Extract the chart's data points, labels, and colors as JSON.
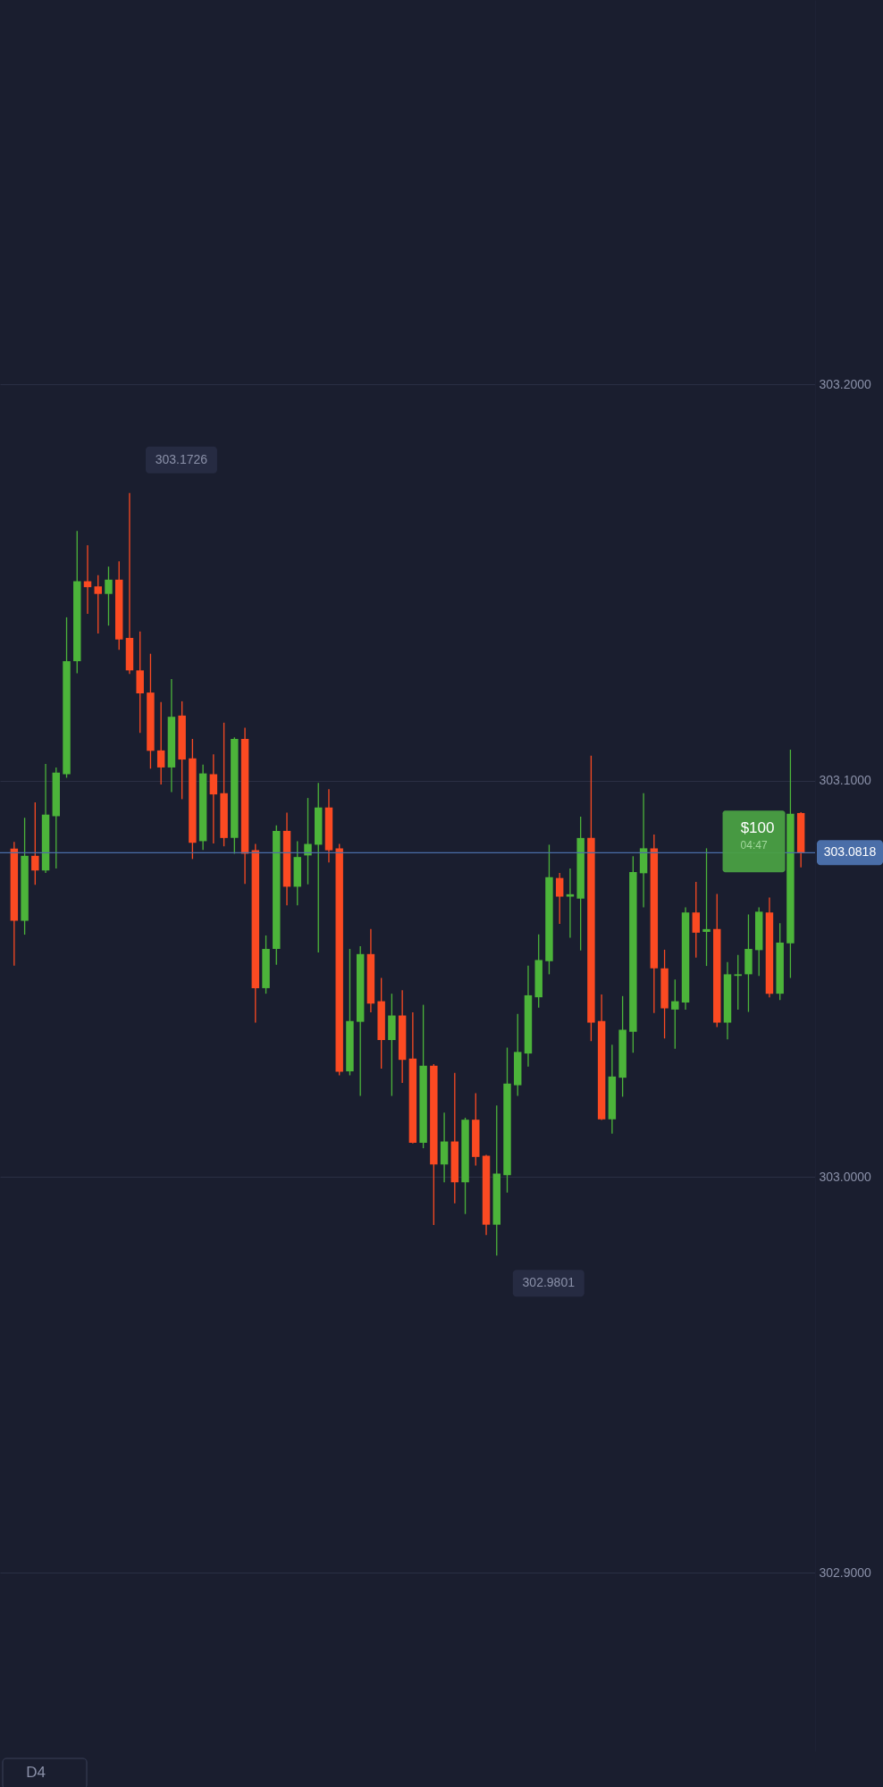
{
  "chart_data": {
    "type": "candlestick",
    "categories": [
      null,
      null,
      null,
      null,
      null,
      null,
      null,
      null,
      null,
      null,
      null,
      null,
      null,
      null,
      null,
      null,
      null,
      null,
      null,
      null,
      null,
      null,
      null,
      null,
      null,
      null,
      null,
      null,
      null,
      null,
      null,
      null,
      null,
      null,
      null,
      null,
      null,
      null,
      null,
      null,
      null,
      null,
      null,
      null,
      null,
      null,
      null,
      null,
      null,
      null,
      null,
      null,
      null,
      null,
      null,
      null,
      null,
      null,
      null,
      null,
      null,
      null,
      null,
      null,
      null,
      null,
      null,
      null,
      null,
      null,
      null,
      null,
      null,
      null,
      null,
      null
    ],
    "ohlc": [
      [
        303.0828,
        303.0845,
        303.0533,
        303.0646
      ],
      [
        303.0646,
        303.0906,
        303.0611,
        303.081
      ],
      [
        303.081,
        303.0945,
        303.0737,
        303.0773
      ],
      [
        303.0773,
        303.1042,
        303.0767,
        303.0914
      ],
      [
        303.091,
        303.1033,
        303.0778,
        303.102
      ],
      [
        303.1016,
        303.1412,
        303.1007,
        303.1301
      ],
      [
        303.1301,
        303.163,
        303.1271,
        303.1503
      ],
      [
        303.1503,
        303.1594,
        303.1421,
        303.1488
      ],
      [
        303.149,
        303.1518,
        303.1371,
        303.1471
      ],
      [
        303.1471,
        303.154,
        303.1391,
        303.1507
      ],
      [
        303.1507,
        303.1553,
        303.133,
        303.1356
      ],
      [
        303.136,
        303.1726,
        303.1269,
        303.1278
      ],
      [
        303.1278,
        303.1376,
        303.112,
        303.122
      ],
      [
        303.1222,
        303.132,
        303.103,
        303.1075
      ],
      [
        303.1076,
        303.1198,
        303.099,
        303.1033
      ],
      [
        303.1033,
        303.1256,
        303.0971,
        303.1161
      ],
      [
        303.1164,
        303.12,
        303.0953,
        303.1053
      ],
      [
        303.1056,
        303.1105,
        303.0802,
        303.0843
      ],
      [
        303.0847,
        303.104,
        303.0825,
        303.1018
      ],
      [
        303.1016,
        303.1066,
        303.0841,
        303.0965
      ],
      [
        303.0968,
        303.1146,
        303.0834,
        303.0855
      ],
      [
        303.0855,
        303.1109,
        303.0815,
        303.1105
      ],
      [
        303.1105,
        303.1133,
        303.0739,
        303.0815
      ],
      [
        303.0824,
        303.084,
        303.0389,
        303.0476
      ],
      [
        303.0476,
        303.0609,
        303.0462,
        303.0575
      ],
      [
        303.0575,
        303.0887,
        303.0535,
        303.0873
      ],
      [
        303.0873,
        303.0919,
        303.0685,
        303.0732
      ],
      [
        303.0732,
        303.0847,
        303.0685,
        303.0807
      ],
      [
        303.0811,
        303.0956,
        303.0738,
        303.084
      ],
      [
        303.0838,
        303.0994,
        303.0566,
        303.0932
      ],
      [
        303.0932,
        303.0978,
        303.0793,
        303.0824
      ],
      [
        303.0829,
        303.084,
        303.0256,
        303.0265
      ],
      [
        303.0266,
        303.0575,
        303.0256,
        303.0393
      ],
      [
        303.0391,
        303.0582,
        303.0204,
        303.0562
      ],
      [
        303.0562,
        303.0625,
        303.0415,
        303.0437
      ],
      [
        303.0443,
        303.0502,
        303.0273,
        303.0345
      ],
      [
        303.0345,
        303.0462,
        303.0204,
        303.0407
      ],
      [
        303.0407,
        303.0471,
        303.0237,
        303.0295
      ],
      [
        303.0298,
        303.0415,
        303.0084,
        303.0086
      ],
      [
        303.0086,
        303.0434,
        303.0072,
        303.028
      ],
      [
        303.028,
        303.0284,
        302.9878,
        303.0031
      ],
      [
        303.0031,
        303.0162,
        302.9986,
        303.0089
      ],
      [
        303.0089,
        303.0262,
        302.9933,
        302.9986
      ],
      [
        302.9986,
        303.0149,
        302.9906,
        303.0144
      ],
      [
        303.0144,
        303.0211,
        303.0028,
        303.005
      ],
      [
        303.0053,
        303.0055,
        302.9853,
        302.9879
      ],
      [
        302.9879,
        303.018,
        302.9801,
        303.0008
      ],
      [
        303.0004,
        303.0326,
        302.996,
        303.0235
      ],
      [
        303.0231,
        303.0411,
        303.0204,
        303.0315
      ],
      [
        303.0311,
        303.0533,
        303.0278,
        303.0458
      ],
      [
        303.0453,
        303.0612,
        303.0427,
        303.0547
      ],
      [
        303.0544,
        303.0838,
        303.0511,
        303.0756
      ],
      [
        303.0754,
        303.0767,
        303.0638,
        303.0707
      ],
      [
        303.0707,
        303.0778,
        303.0603,
        303.0713
      ],
      [
        303.0702,
        303.0909,
        303.0571,
        303.0855
      ],
      [
        303.0855,
        303.1063,
        303.0342,
        303.0389
      ],
      [
        303.0393,
        303.046,
        303.0143,
        303.0145
      ],
      [
        303.0145,
        303.0333,
        303.0109,
        303.0253
      ],
      [
        303.025,
        303.0456,
        303.0202,
        303.0371
      ],
      [
        303.0366,
        303.0809,
        303.0313,
        303.0769
      ],
      [
        303.0766,
        303.0968,
        303.068,
        303.0829
      ],
      [
        303.0829,
        303.0864,
        303.0413,
        303.0526
      ],
      [
        303.0526,
        303.0573,
        303.0349,
        303.0425
      ],
      [
        303.0422,
        303.0498,
        303.0323,
        303.0443
      ],
      [
        303.044,
        303.068,
        303.0422,
        303.0667
      ],
      [
        303.0667,
        303.0744,
        303.0553,
        303.0616
      ],
      [
        303.0618,
        303.0829,
        303.0532,
        303.0625
      ],
      [
        303.0625,
        303.0714,
        303.0378,
        303.0389
      ],
      [
        303.0389,
        303.0542,
        303.0347,
        303.0511
      ],
      [
        303.0507,
        303.056,
        303.0422,
        303.0511
      ],
      [
        303.0511,
        303.0662,
        303.0416,
        303.0575
      ],
      [
        303.0572,
        303.068,
        303.0507,
        303.0669
      ],
      [
        303.0667,
        303.0705,
        303.0453,
        303.0462
      ],
      [
        303.0462,
        303.064,
        303.0446,
        303.0591
      ],
      [
        303.0589,
        303.1078,
        303.0502,
        303.0916
      ],
      [
        303.0918,
        303.092,
        303.0781,
        303.0818
      ]
    ],
    "colors": [
      "#fb4a22",
      "#4cb43a",
      "#fb4a22",
      "#4cb43a",
      "#4cb43a",
      "#4cb43a",
      "#4cb43a",
      "#fb4a22",
      "#fb4a22",
      "#4cb43a",
      "#fb4a22",
      "#fb4a22",
      "#fb4a22",
      "#fb4a22",
      "#fb4a22",
      "#4cb43a",
      "#fb4a22",
      "#fb4a22",
      "#4cb43a",
      "#fb4a22",
      "#fb4a22",
      "#4cb43a",
      "#fb4a22",
      "#fb4a22",
      "#4cb43a",
      "#4cb43a",
      "#fb4a22",
      "#4cb43a",
      "#4cb43a",
      "#4cb43a",
      "#fb4a22",
      "#fb4a22",
      "#4cb43a",
      "#4cb43a",
      "#fb4a22",
      "#fb4a22",
      "#4cb43a",
      "#fb4a22",
      "#fb4a22",
      "#4cb43a",
      "#fb4a22",
      "#4cb43a",
      "#fb4a22",
      "#4cb43a",
      "#fb4a22",
      "#fb4a22",
      "#4cb43a",
      "#4cb43a",
      "#4cb43a",
      "#4cb43a",
      "#4cb43a",
      "#4cb43a",
      "#fb4a22",
      "#4cb43a",
      "#4cb43a",
      "#fb4a22",
      "#fb4a22",
      "#4cb43a",
      "#4cb43a",
      "#4cb43a",
      "#4cb43a",
      "#fb4a22",
      "#fb4a22",
      "#4cb43a",
      "#4cb43a",
      "#fb4a22",
      "#4cb43a",
      "#fb4a22",
      "#4cb43a",
      "#4cb43a",
      "#4cb43a",
      "#4cb43a",
      "#fb4a22",
      "#4cb43a",
      "#4cb43a",
      "#fb4a22"
    ],
    "ylim": [
      302.855,
      303.297
    ],
    "yticks": [
      {
        "value": 302.9,
        "label": "302.9000"
      },
      {
        "value": 303.0,
        "label": "303.0000"
      },
      {
        "value": 303.1,
        "label": "303.1000"
      },
      {
        "value": 303.2,
        "label": "303.2000"
      }
    ],
    "grid": "y",
    "tick_labels": "y",
    "ref_lines": [
      {
        "axis": "y",
        "value": 303.0818,
        "label": "303.0818",
        "color": "#4a6ea8"
      }
    ],
    "annotations": [
      "303.1726",
      "302.9801",
      "$100",
      "04:47",
      "D4"
    ]
  }
}
